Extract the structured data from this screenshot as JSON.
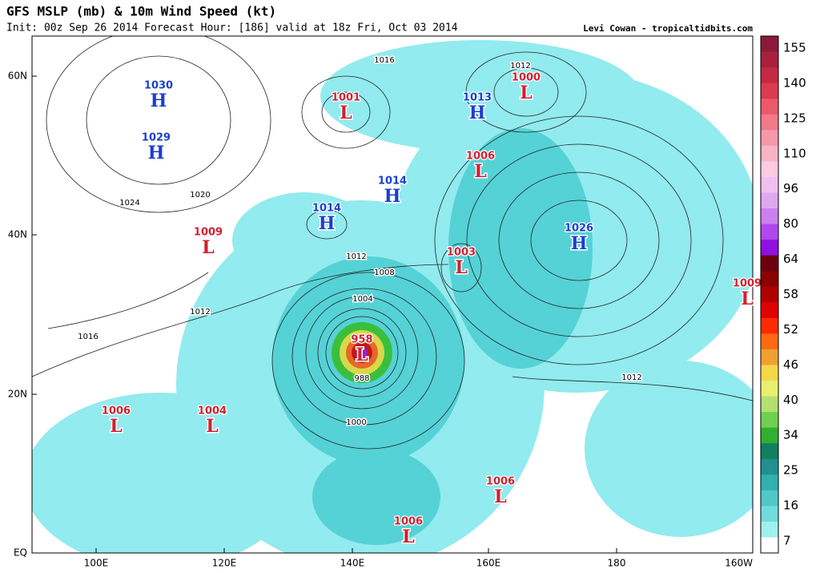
{
  "header": {
    "title": "GFS MSLP (mb) & 10m Wind Speed (kt)",
    "subtitle": "Init: 00z Sep 26 2014 Forecast Hour: [186] valid at 18z Fri, Oct 03 2014",
    "credit": "Levi Cowan - tropicaltidbits.com"
  },
  "axes": {
    "lat_labels": [
      "60N",
      "40N",
      "20N",
      "EQ"
    ],
    "lon_labels": [
      "100E",
      "120E",
      "140E",
      "160E",
      "180",
      "160W"
    ]
  },
  "centers": [
    {
      "pressure": 1030,
      "type": "H"
    },
    {
      "pressure": 1029,
      "type": "H"
    },
    {
      "pressure": 1001,
      "type": "L"
    },
    {
      "pressure": 1013,
      "type": "H"
    },
    {
      "pressure": 1000,
      "type": "L"
    },
    {
      "pressure": 1006,
      "type": "L"
    },
    {
      "pressure": 1014,
      "type": "H"
    },
    {
      "pressure": 1014,
      "type": "H"
    },
    {
      "pressure": 1009,
      "type": "L"
    },
    {
      "pressure": 1026,
      "type": "H"
    },
    {
      "pressure": 1003,
      "type": "L"
    },
    {
      "pressure": 1009,
      "type": "L"
    },
    {
      "pressure": 958,
      "type": "L"
    },
    {
      "pressure": 1006,
      "type": "L"
    },
    {
      "pressure": 1004,
      "type": "L"
    },
    {
      "pressure": 1006,
      "type": "L"
    },
    {
      "pressure": 1006,
      "type": "L"
    }
  ],
  "contour_labels": [
    1016,
    1012,
    1024,
    1020,
    1012,
    1008,
    1004,
    1012,
    1016,
    988,
    1000,
    1012
  ],
  "colorbar": {
    "ticks": [
      155,
      140,
      125,
      110,
      96,
      80,
      64,
      58,
      52,
      46,
      40,
      34,
      25,
      16,
      7
    ]
  }
}
